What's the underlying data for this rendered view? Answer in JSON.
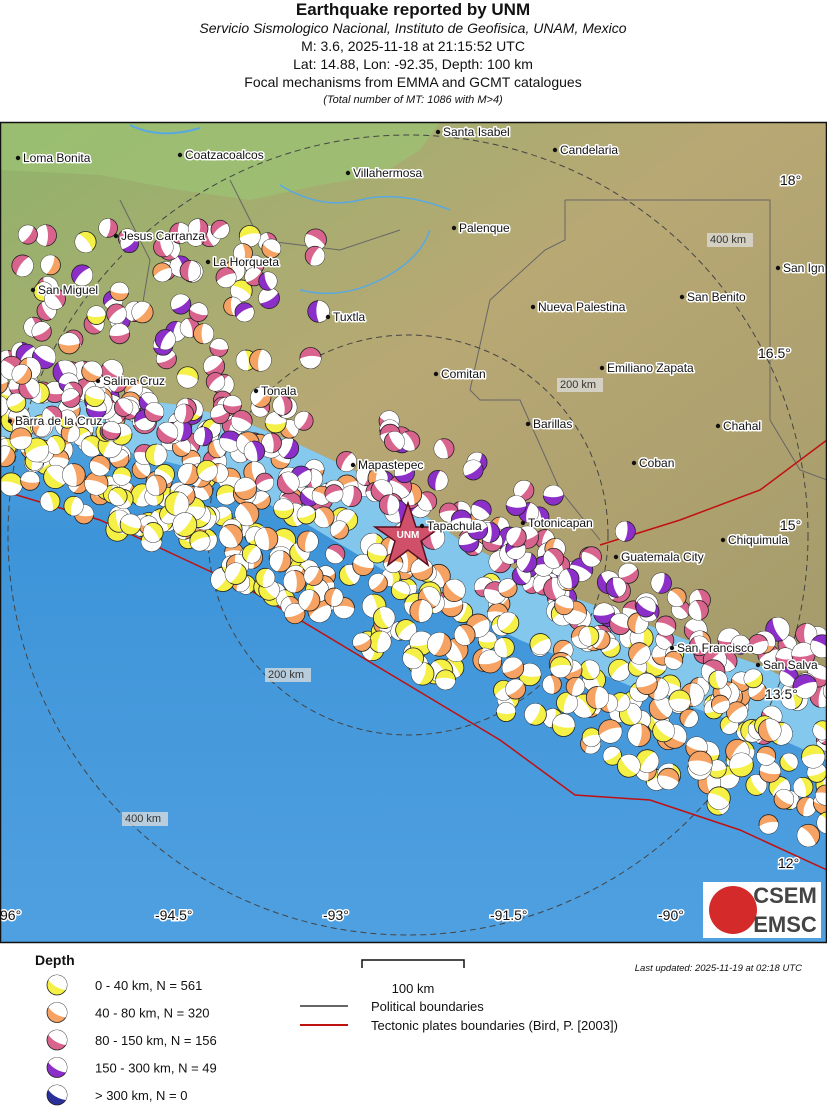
{
  "header": {
    "title": "Earthquake reported by UNM",
    "subtitle": "Servicio Sismologico Nacional, Instituto de Geofisica, UNAM, Mexico",
    "event": "M: 3.6,  2025-11-18 at 21:15:52 UTC",
    "location": "Lat: 14.88, Lon: -92.35, Depth: 100 km",
    "mechanisms": "Focal mechanisms from EMMA and GCMT catalogues",
    "note": "(Total number of MT: 1086 with M>4)"
  },
  "map": {
    "places": [
      "Santa Isabel",
      "Candelaria",
      "Loma Bonita",
      "Coatzacoalcos",
      "Villahermosa",
      "Jesus Carranza",
      "Palenque",
      "La Horqueta",
      "San Ign",
      "San Miguel",
      "Nueva Palestina",
      "San Benito",
      "Tuxtla",
      "Emiliano Zapata",
      "Comitan",
      "Salina Cruz",
      "Tonala",
      "Barra de la Cruz",
      "Barillas",
      "Chahal",
      "Mapastepec",
      "Coban",
      "Tapachula",
      "Totonicapan",
      "Chiquimula",
      "Guatemala City",
      "San Francisco",
      "San Salva"
    ],
    "lat_labels": [
      "18°",
      "16.5°",
      "15°",
      "13.5°",
      "12°"
    ],
    "lon_labels": [
      "96°",
      "-94.5°",
      "-93°",
      "-91.5°",
      "-90°"
    ],
    "ring_labels": [
      "400 km",
      "200 km",
      "200 km",
      "400 km"
    ],
    "epicenter_label": "UNM"
  },
  "legend": {
    "title": "Depth",
    "depth_classes": [
      "0 - 40 km, N = 561",
      "40 - 80 km, N = 320",
      "80 - 150 km, N = 156",
      "150 - 300 km, N = 49",
      "> 300 km, N = 0"
    ],
    "scale": "100 km",
    "lines": [
      "Political boundaries",
      "Tectonic plates boundaries (Bird, P. [2003])"
    ],
    "updated": "Last updated: 2025-11-19 at 02:18 UTC"
  },
  "logo": [
    "CSEM",
    "EMSC"
  ]
}
